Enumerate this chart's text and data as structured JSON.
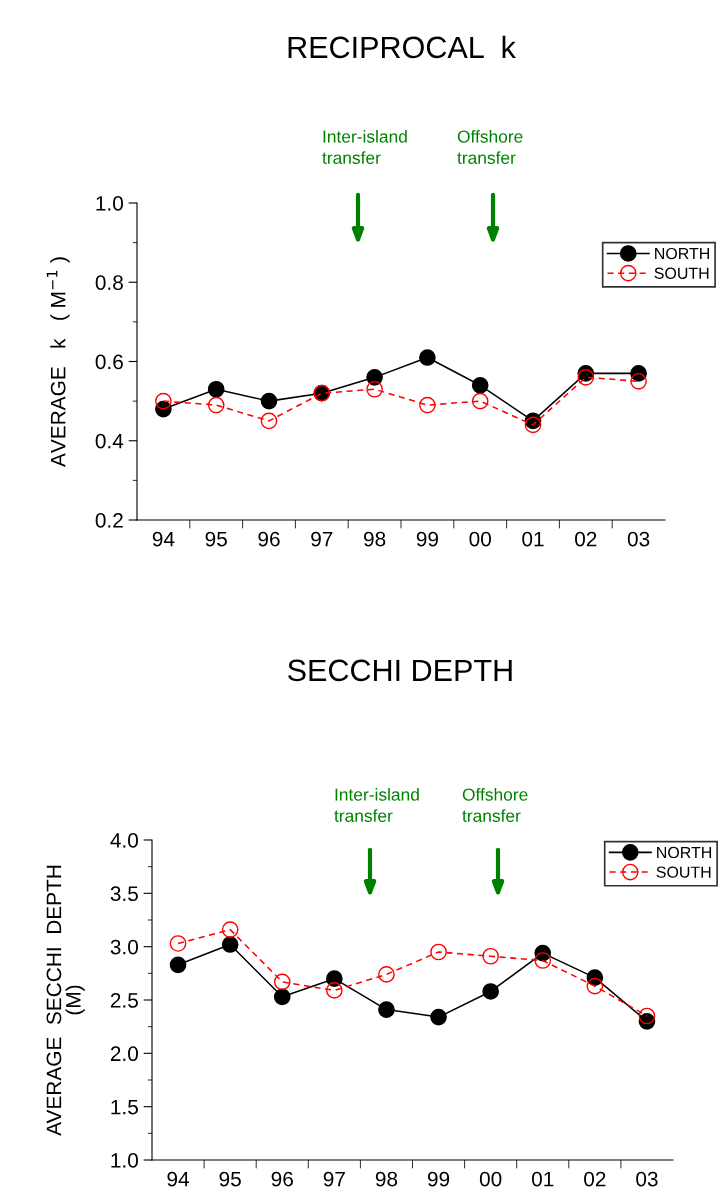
{
  "chart_data": [
    {
      "type": "line",
      "title": "RECIPROCAL  k",
      "ylabel": "AVERAGE   k   ( M$^{−1}$ )",
      "categories": [
        "94",
        "95",
        "96",
        "97",
        "98",
        "99",
        "00",
        "01",
        "02",
        "03"
      ],
      "series": [
        {
          "name": "NORTH",
          "color": "#000000",
          "line_style": "solid",
          "values": [
            0.48,
            0.53,
            0.5,
            0.52,
            0.56,
            0.61,
            0.54,
            0.45,
            0.57,
            0.57
          ]
        },
        {
          "name": "SOUTH",
          "color": "#ff0000",
          "line_style": "dashed",
          "values": [
            0.5,
            0.49,
            0.45,
            0.52,
            0.53,
            0.49,
            0.5,
            0.44,
            0.56,
            0.55
          ]
        }
      ],
      "ylim": [
        0.2,
        1.0
      ],
      "yticks": [
        0.2,
        0.4,
        0.6,
        0.8,
        {
          "value": 1,
          "label": "1.0"
        }
      ],
      "marker": "circle",
      "grid": false,
      "legend": "top right",
      "annotations": [
        "Inter-island\ntransfer",
        "Offshore\ntransfer"
      ]
    },
    {
      "type": "line",
      "title": "SECCHI DEPTH",
      "ylabel": "AVERAGE  SECCHI  DEPTH\n(M)",
      "categories": [
        "94",
        "95",
        "96",
        "97",
        "98",
        "99",
        "00",
        "01",
        "02",
        "03"
      ],
      "series": [
        {
          "name": "NORTH",
          "color": "#000000",
          "line_style": "solid",
          "values": [
            2.83,
            3.02,
            2.53,
            2.7,
            2.41,
            2.34,
            2.58,
            2.94,
            2.71,
            2.3
          ]
        },
        {
          "name": "SOUTH",
          "color": "#ff0000",
          "line_style": "dashed",
          "values": [
            3.03,
            3.16,
            2.67,
            2.59,
            2.74,
            2.95,
            2.91,
            2.87,
            2.63,
            2.35
          ]
        }
      ],
      "ylim": [
        1,
        4
      ],
      "yticks": [
        {
          "value": 1,
          "label": "1.0"
        },
        1.5,
        {
          "value": 2,
          "label": "2.0"
        },
        2.5,
        {
          "value": 3,
          "label": "3.0"
        },
        3.5,
        {
          "value": 4,
          "label": "4.0"
        }
      ],
      "marker": "circle",
      "grid": false,
      "legend": "top right",
      "annotations": [
        "Inter-island\ntransfer",
        "Offshore\ntransfer"
      ]
    }
  ]
}
